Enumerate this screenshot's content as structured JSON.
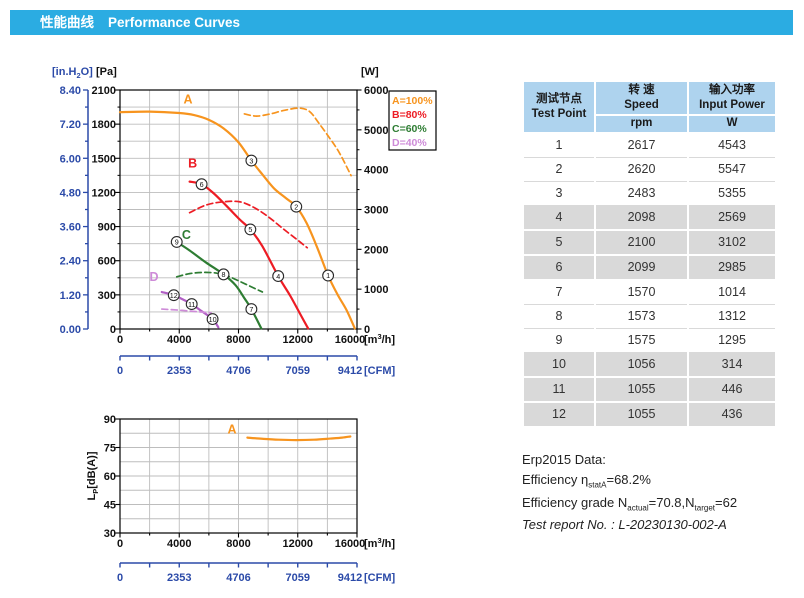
{
  "header": {
    "title_zh": "性能曲线",
    "title_en": "Performance Curves",
    "bar_color": "#2BACE2"
  },
  "colors": {
    "header_bar": "#2BACE2",
    "royal_blue": "#2B4AA8",
    "orange": "#F7941E",
    "red": "#ED1C24",
    "green": "#2E7D33",
    "purple": "#B05FC4",
    "purple_light": "#CE8BD8",
    "grid": "#BDBDBD",
    "axis": "#111111",
    "table_header_bg": "#AED3EE",
    "table_row_gray": "#D9D9D9"
  },
  "chart_data": [
    {
      "type": "line",
      "id": "performance-curves",
      "x_axis": {
        "title_parts": [
          "[m",
          "3",
          "/h]"
        ],
        "ticks": [
          "0",
          "4000",
          "8000",
          "12000",
          "16000"
        ],
        "tick_values": [
          0,
          4000,
          8000,
          12000,
          16000
        ],
        "minor_step": 2000,
        "range": [
          0,
          16000
        ],
        "grid": true
      },
      "y_axis_pa": {
        "title": "[Pa]",
        "ticks": [
          "0",
          "300",
          "600",
          "900",
          "1200",
          "1500",
          "1800",
          "2100"
        ],
        "tick_values": [
          0,
          300,
          600,
          900,
          1200,
          1500,
          1800,
          2100
        ],
        "minor_step": 150,
        "range": [
          0,
          2100
        ],
        "grid_step": 150
      },
      "y_axis_inh2o": {
        "title_parts": [
          "[in.H",
          "2",
          "O]"
        ],
        "ticks": [
          "0.00",
          "1.20",
          "2.40",
          "3.60",
          "4.80",
          "6.00",
          "7.20",
          "8.40"
        ],
        "range": [
          0,
          8.4
        ]
      },
      "y_axis_w": {
        "title": "[W]",
        "ticks": [
          "0",
          "1000",
          "2000",
          "3000",
          "4000",
          "5000",
          "6000"
        ],
        "tick_values": [
          0,
          1000,
          2000,
          3000,
          4000,
          5000,
          6000
        ],
        "minor_step": 500,
        "range": [
          0,
          6000
        ]
      },
      "cfm_axis": {
        "title": "[CFM]",
        "ticks": [
          "0",
          "2353",
          "4706",
          "7059",
          "9412"
        ],
        "tick_values": [
          0,
          2353,
          4706,
          7059,
          9412
        ],
        "minor_step": 1176.5,
        "range": [
          0,
          9412
        ]
      },
      "legend": [
        {
          "label": "A=100%",
          "color": "#F7941E"
        },
        {
          "label": "B=80%",
          "color": "#ED1C24"
        },
        {
          "label": "C=60%",
          "color": "#2E7D33"
        },
        {
          "label": "D=40%",
          "color": "#CE8BD8"
        }
      ],
      "series": [
        {
          "name": "A pressure",
          "axis": "pa",
          "style": "solid",
          "color": "#F7941E",
          "points": [
            [
              0,
              1905
            ],
            [
              2000,
              1910
            ],
            [
              4000,
              1898
            ],
            [
              5000,
              1880
            ],
            [
              6000,
              1838
            ],
            [
              7000,
              1762
            ],
            [
              8000,
              1640
            ],
            [
              8870,
              1480
            ],
            [
              9600,
              1360
            ],
            [
              10400,
              1235
            ],
            [
              11200,
              1150
            ],
            [
              11900,
              1075
            ],
            [
              12600,
              930
            ],
            [
              13300,
              720
            ],
            [
              14050,
              470
            ],
            [
              14700,
              300
            ],
            [
              15300,
              165
            ],
            [
              15850,
              5
            ]
          ]
        },
        {
          "name": "A input power",
          "axis": "w",
          "style": "dashed",
          "color": "#F7941E",
          "points": [
            [
              8400,
              5400
            ],
            [
              9200,
              5345
            ],
            [
              10100,
              5395
            ],
            [
              11100,
              5490
            ],
            [
              12100,
              5545
            ],
            [
              12800,
              5460
            ],
            [
              13400,
              5180
            ],
            [
              14100,
              4820
            ],
            [
              14800,
              4430
            ],
            [
              15600,
              3850
            ]
          ]
        },
        {
          "name": "B pressure",
          "axis": "pa",
          "style": "solid",
          "color": "#ED1C24",
          "points": [
            [
              4700,
              1295
            ],
            [
              5510,
              1272
            ],
            [
              6300,
              1195
            ],
            [
              7200,
              1080
            ],
            [
              8100,
              960
            ],
            [
              8800,
              875
            ],
            [
              9600,
              730
            ],
            [
              10680,
              465
            ],
            [
              11500,
              290
            ],
            [
              12150,
              135
            ],
            [
              12700,
              5
            ]
          ]
        },
        {
          "name": "B input power",
          "axis": "w",
          "style": "dashed",
          "color": "#ED1C24",
          "points": [
            [
              4700,
              2920
            ],
            [
              5800,
              3110
            ],
            [
              6900,
              3190
            ],
            [
              8060,
              3195
            ],
            [
              9000,
              3060
            ],
            [
              10000,
              2820
            ],
            [
              11000,
              2520
            ],
            [
              12000,
              2230
            ],
            [
              12640,
              2040
            ]
          ]
        },
        {
          "name": "C pressure",
          "axis": "pa",
          "style": "solid",
          "color": "#2E7D33",
          "points": [
            [
              3830,
              765
            ],
            [
              4700,
              690
            ],
            [
              5800,
              585
            ],
            [
              6990,
              480
            ],
            [
              7800,
              385
            ],
            [
              8400,
              270
            ],
            [
              8870,
              175
            ],
            [
              9540,
              5
            ]
          ]
        },
        {
          "name": "C input power",
          "axis": "w",
          "style": "dashed",
          "color": "#2E7D33",
          "points": [
            [
              3830,
              1310
            ],
            [
              4700,
              1390
            ],
            [
              5600,
              1420
            ],
            [
              6500,
              1405
            ],
            [
              7200,
              1340
            ],
            [
              8000,
              1210
            ],
            [
              8800,
              1070
            ],
            [
              9610,
              930
            ]
          ]
        },
        {
          "name": "D pressure",
          "axis": "pa",
          "style": "solid",
          "color": "#B05FC4",
          "points": [
            [
              2820,
              325
            ],
            [
              3630,
              297
            ],
            [
              4300,
              256
            ],
            [
              4840,
              219
            ],
            [
              5500,
              158
            ],
            [
              6250,
              87
            ],
            [
              6640,
              15
            ]
          ]
        },
        {
          "name": "D input power",
          "axis": "w",
          "style": "dashed",
          "color": "#CE8BD8",
          "points": [
            [
              2820,
              500
            ],
            [
              3800,
              478
            ],
            [
              4800,
              448
            ],
            [
              5700,
              420
            ],
            [
              6150,
              402
            ]
          ]
        }
      ],
      "curve_labels": [
        {
          "text": "A",
          "x": 4590,
          "y": 1980,
          "color": "#F7941E"
        },
        {
          "text": "B",
          "x": 4900,
          "y": 1420,
          "color": "#ED1C24"
        },
        {
          "text": "C",
          "x": 4480,
          "y": 790,
          "color": "#2E7D33"
        },
        {
          "text": "D",
          "x": 2300,
          "y": 420,
          "color": "#CE8BD8"
        }
      ],
      "markers": [
        {
          "n": "1",
          "x": 14050,
          "y": 470
        },
        {
          "n": "2",
          "x": 11900,
          "y": 1075
        },
        {
          "n": "3",
          "x": 8870,
          "y": 1480
        },
        {
          "n": "4",
          "x": 10680,
          "y": 465
        },
        {
          "n": "5",
          "x": 8800,
          "y": 875
        },
        {
          "n": "6",
          "x": 5510,
          "y": 1272
        },
        {
          "n": "7",
          "x": 8870,
          "y": 175
        },
        {
          "n": "8",
          "x": 6990,
          "y": 480
        },
        {
          "n": "9",
          "x": 3830,
          "y": 765
        },
        {
          "n": "10",
          "x": 6250,
          "y": 87
        },
        {
          "n": "11",
          "x": 4840,
          "y": 219
        },
        {
          "n": "12",
          "x": 3630,
          "y": 297
        }
      ]
    },
    {
      "type": "line",
      "id": "noise-curve",
      "y_axis": {
        "title_parts": [
          "L",
          "P",
          "[dB(A)]"
        ],
        "ticks": [
          "30",
          "45",
          "60",
          "75",
          "90"
        ],
        "tick_values": [
          30,
          45,
          60,
          75,
          90
        ],
        "range": [
          30,
          90
        ],
        "grid_step": 7.5
      },
      "x_axis": {
        "title_parts": [
          "[m",
          "3",
          "/h]"
        ],
        "ticks": [
          "0",
          "4000",
          "8000",
          "12000",
          "16000"
        ],
        "tick_values": [
          0,
          4000,
          8000,
          12000,
          16000
        ],
        "minor_step": 2000,
        "range": [
          0,
          16000
        ],
        "grid": true
      },
      "cfm_axis": {
        "title": "[CFM]",
        "ticks": [
          "0",
          "2353",
          "4706",
          "7059",
          "9412"
        ],
        "tick_values": [
          0,
          2353,
          4706,
          7059,
          9412
        ],
        "minor_step": 1176.5,
        "range": [
          0,
          9412
        ]
      },
      "series": [
        {
          "name": "A noise",
          "style": "solid",
          "color": "#F7941E",
          "points": [
            [
              8600,
              80.2
            ],
            [
              9600,
              79.6
            ],
            [
              10700,
              79.1
            ],
            [
              11900,
              78.9
            ],
            [
              13100,
              79.1
            ],
            [
              14200,
              79.7
            ],
            [
              15000,
              80.2
            ],
            [
              15550,
              80.8
            ]
          ]
        }
      ],
      "curve_labels": [
        {
          "text": "A",
          "x": 7565,
          "y": 82.3,
          "color": "#F7941E"
        }
      ]
    }
  ],
  "table": {
    "col1_zh": "测试节点",
    "col1_en": "Test Point",
    "col2_zh": "转 速",
    "col2_en": "Speed",
    "col2_unit": "rpm",
    "col3_zh": "输入功率",
    "col3_en": "Input Power",
    "col3_unit": "W",
    "rows": [
      [
        "1",
        "2617",
        "4543"
      ],
      [
        "2",
        "2620",
        "5547"
      ],
      [
        "3",
        "2483",
        "5355"
      ],
      [
        "4",
        "2098",
        "2569"
      ],
      [
        "5",
        "2100",
        "3102"
      ],
      [
        "6",
        "2099",
        "2985"
      ],
      [
        "7",
        "1570",
        "1014"
      ],
      [
        "8",
        "1573",
        "1312"
      ],
      [
        "9",
        "1575",
        "1295"
      ],
      [
        "10",
        "1056",
        "314"
      ],
      [
        "11",
        "1055",
        "446"
      ],
      [
        "12",
        "1055",
        "436"
      ]
    ]
  },
  "erp": {
    "title": "Erp2015  Data:",
    "eff_prefix": "Efficiency η",
    "eff_sub": "statA",
    "eff_value": "=68.2%",
    "grade_prefix": "Efficiency grade N",
    "grade_sub1": "actual",
    "grade_mid": "=70.8,N",
    "grade_sub2": "target",
    "grade_value": "=62",
    "report": "Test report No.  : L-20230130-002-A"
  }
}
